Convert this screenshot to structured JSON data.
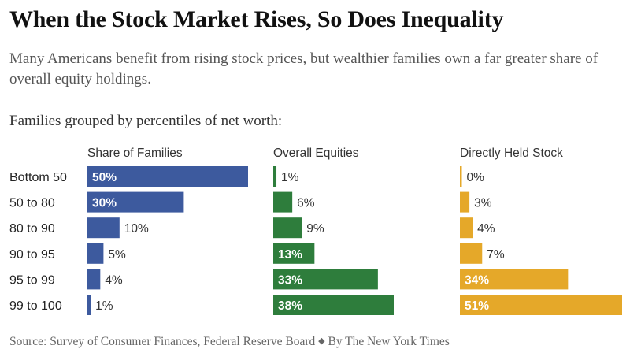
{
  "title": "When the Stock Market Rises, So Does Inequality",
  "subtitle": "Many Americans benefit from rising stock prices, but wealthier families own a far greater share of overall equity holdings.",
  "group_label": "Families grouped by percentiles of net worth:",
  "source": {
    "text": "Source: Survey of Consumer Finances, Federal Reserve Board",
    "separator": "◆",
    "credit": "By The New York Times"
  },
  "chart_data": [
    {
      "type": "bar",
      "orientation": "horizontal",
      "title": "Share of Families",
      "categories": [
        "Bottom 50",
        "50 to 80",
        "80 to 90",
        "90 to 95",
        "95 to 99",
        "99 to 100"
      ],
      "values": [
        50,
        30,
        10,
        5,
        4,
        1
      ],
      "labels": [
        "50%",
        "30%",
        "10%",
        "5%",
        "4%",
        "1%"
      ],
      "unit": "%",
      "color": "#3d5a9e",
      "xlim": [
        0,
        50
      ],
      "grid": false
    },
    {
      "type": "bar",
      "orientation": "horizontal",
      "title": "Overall Equities",
      "categories": [
        "Bottom 50",
        "50 to 80",
        "80 to 90",
        "90 to 95",
        "95 to 99",
        "99 to 100"
      ],
      "values": [
        1,
        6,
        9,
        13,
        33,
        38
      ],
      "labels": [
        "1%",
        "6%",
        "9%",
        "13%",
        "33%",
        "38%"
      ],
      "unit": "%",
      "color": "#2e7d3c",
      "xlim": [
        0,
        38
      ],
      "grid": false
    },
    {
      "type": "bar",
      "orientation": "horizontal",
      "title": "Directly Held Stock",
      "categories": [
        "Bottom 50",
        "50 to 80",
        "80 to 90",
        "90 to 95",
        "95 to 99",
        "99 to 100"
      ],
      "values": [
        0,
        3,
        4,
        7,
        34,
        51
      ],
      "labels": [
        "0%",
        "3%",
        "4%",
        "7%",
        "34%",
        "51%"
      ],
      "unit": "%",
      "color": "#e5a829",
      "xlim": [
        0,
        51
      ],
      "grid": false
    }
  ]
}
